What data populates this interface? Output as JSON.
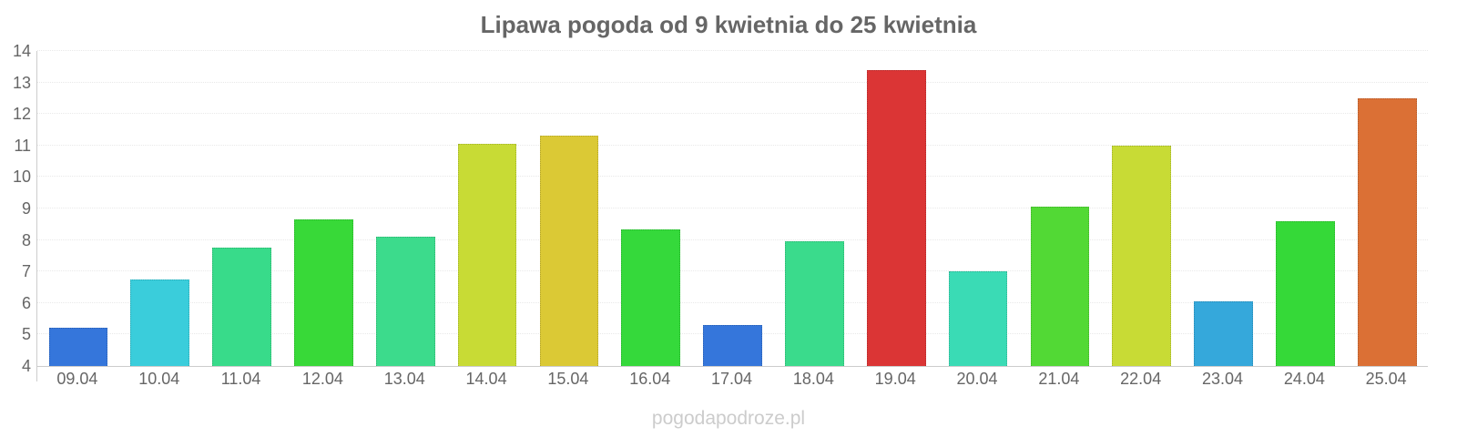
{
  "watermark": "pogodapodroze.pl",
  "colors": {
    "title_text": "#666666",
    "axis_text": "#666666",
    "axis_line": "#cccccc",
    "gridline": "#e9e9e9",
    "background": "#ffffff",
    "watermark_text": "#cccccc"
  },
  "chart_data": {
    "type": "bar",
    "title": "Lipawa pogoda od 9 kwietnia do 25 kwietnia",
    "xlabel": "",
    "ylabel": "",
    "ylim": [
      4,
      14
    ],
    "yticks": [
      4,
      5,
      6,
      7,
      8,
      9,
      10,
      11,
      12,
      13,
      14
    ],
    "grid": true,
    "legend": "none",
    "categories": [
      "09.04",
      "10.04",
      "11.04",
      "12.04",
      "13.04",
      "14.04",
      "15.04",
      "16.04",
      "17.04",
      "18.04",
      "19.04",
      "20.04",
      "21.04",
      "22.04",
      "23.04",
      "24.04",
      "25.04"
    ],
    "values": [
      5.2,
      6.75,
      7.75,
      8.65,
      8.1,
      11.05,
      11.3,
      8.35,
      5.3,
      7.95,
      13.4,
      7.0,
      9.05,
      11.0,
      6.05,
      8.6,
      12.5
    ],
    "bar_colors": [
      "#3576db",
      "#3acddb",
      "#38db8a",
      "#38d938",
      "#3cdb8c",
      "#c8db35",
      "#dbc935",
      "#35d93b",
      "#3576db",
      "#3adb8c",
      "#db3535",
      "#3adbb5",
      "#52d935",
      "#c8db35",
      "#35a8db",
      "#35d938",
      "#db7035"
    ]
  }
}
